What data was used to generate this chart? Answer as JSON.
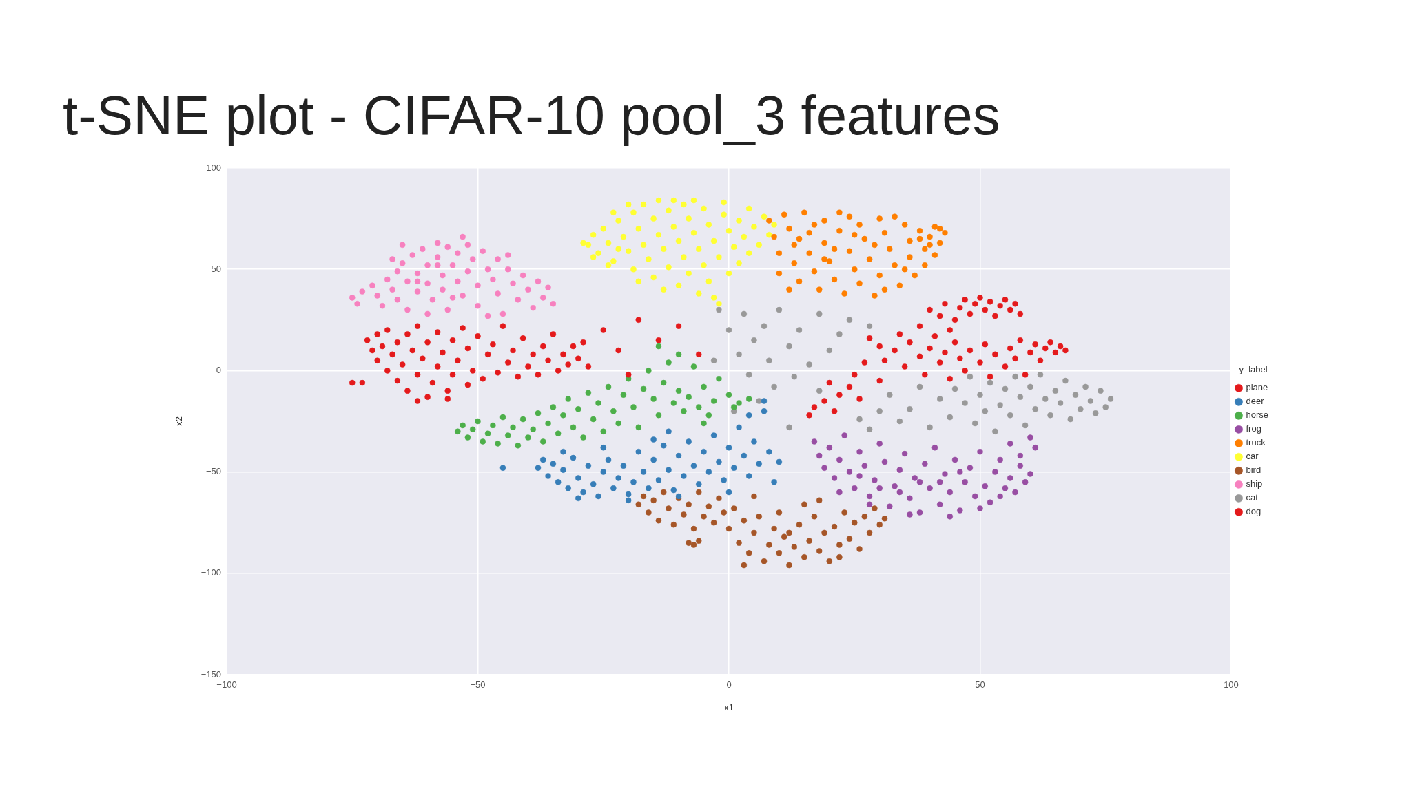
{
  "chart_data": {
    "type": "scatter",
    "title": "t-SNE plot - CIFAR-10 pool_3 features",
    "xlabel": "x1",
    "ylabel": "x2",
    "legend_title": "y_label",
    "xlim": [
      -100,
      100
    ],
    "xticks": [
      {
        "value": -100,
        "label": "−100"
      },
      {
        "value": -50,
        "label": "−50"
      },
      0,
      50,
      100
    ],
    "ylim": [
      -150,
      100
    ],
    "yticks": [
      {
        "value": -150,
        "label": "−150"
      },
      {
        "value": -100,
        "label": "−100"
      },
      {
        "value": -50,
        "label": "−50"
      },
      0,
      50,
      100
    ],
    "grid": true,
    "legend": "right",
    "marker": "circle",
    "series": [
      {
        "name": "plane",
        "color": "#e41a1c",
        "x": [
          -72,
          -71,
          -70,
          -70,
          -69,
          -68,
          -68,
          -67,
          -66,
          -66,
          -65,
          -64,
          -64,
          -63,
          -62,
          -62,
          -61,
          -60,
          -60,
          -59,
          -58,
          -58,
          -57,
          -56,
          -55,
          -55,
          -54,
          -53,
          -52,
          -52,
          -51,
          -50,
          -49,
          -48,
          -47,
          -46,
          -45,
          -44,
          -43,
          -42,
          -41,
          -40,
          -39,
          -38,
          -37,
          -36,
          -35,
          -34,
          -33,
          -32,
          -31,
          -30,
          -29,
          -28,
          -62,
          -56,
          -75,
          -73,
          -25,
          -22,
          -18,
          -14,
          -10,
          -6,
          -20
        ],
        "values": [
          15,
          10,
          18,
          5,
          12,
          0,
          20,
          8,
          14,
          -5,
          3,
          18,
          -10,
          10,
          -2,
          22,
          6,
          -13,
          14,
          -6,
          2,
          19,
          9,
          -10,
          15,
          -2,
          5,
          21,
          -7,
          11,
          0,
          17,
          -4,
          8,
          13,
          -1,
          22,
          4,
          10,
          -3,
          16,
          2,
          8,
          -2,
          12,
          5,
          18,
          0,
          8,
          3,
          12,
          6,
          14,
          2,
          -15,
          -14,
          -6,
          -6,
          20,
          10,
          25,
          15,
          22,
          8,
          -2
        ]
      },
      {
        "name": "deer",
        "color": "#377eb8",
        "x": [
          -45,
          -38,
          -37,
          -36,
          -35,
          -34,
          -33,
          -32,
          -31,
          -30,
          -29,
          -28,
          -27,
          -26,
          -25,
          -24,
          -23,
          -22,
          -21,
          -20,
          -19,
          -18,
          -17,
          -16,
          -15,
          -14,
          -13,
          -12,
          -11,
          -10,
          -9,
          -8,
          -7,
          -6,
          -5,
          -4,
          -3,
          -2,
          -1,
          0,
          1,
          2,
          3,
          4,
          5,
          6,
          7,
          8,
          9,
          10,
          7,
          -30,
          -20,
          -10,
          -25,
          -15,
          -33,
          -12,
          0,
          4
        ],
        "values": [
          -48,
          -48,
          -44,
          -52,
          -46,
          -55,
          -49,
          -58,
          -43,
          -53,
          -60,
          -47,
          -56,
          -62,
          -50,
          -44,
          -58,
          -53,
          -47,
          -61,
          -55,
          -40,
          -50,
          -58,
          -44,
          -54,
          -37,
          -49,
          -59,
          -42,
          -52,
          -35,
          -47,
          -56,
          -40,
          -50,
          -32,
          -45,
          -54,
          -38,
          -48,
          -28,
          -42,
          -52,
          -35,
          -46,
          -20,
          -40,
          -55,
          -45,
          -15,
          -63,
          -64,
          -62,
          -38,
          -34,
          -40,
          -30,
          -60,
          -22
        ]
      },
      {
        "name": "horse",
        "color": "#4daf4a",
        "x": [
          -54,
          -53,
          -52,
          -51,
          -50,
          -49,
          -48,
          -47,
          -46,
          -45,
          -44,
          -43,
          -42,
          -41,
          -40,
          -39,
          -38,
          -37,
          -36,
          -35,
          -34,
          -33,
          -32,
          -31,
          -30,
          -29,
          -28,
          -27,
          -26,
          -25,
          -24,
          -23,
          -22,
          -21,
          -20,
          -19,
          -18,
          -17,
          -16,
          -15,
          -14,
          -13,
          -12,
          -11,
          -10,
          -9,
          -8,
          -7,
          -6,
          -5,
          -4,
          -3,
          -2,
          0,
          1,
          2,
          4,
          -10,
          -14,
          -5
        ],
        "values": [
          -30,
          -27,
          -33,
          -29,
          -25,
          -35,
          -31,
          -27,
          -36,
          -23,
          -32,
          -28,
          -37,
          -24,
          -33,
          -29,
          -21,
          -35,
          -26,
          -18,
          -31,
          -22,
          -14,
          -28,
          -19,
          -33,
          -11,
          -24,
          -16,
          -30,
          -8,
          -20,
          -26,
          -12,
          -4,
          -18,
          -28,
          -9,
          0,
          -14,
          -22,
          -6,
          4,
          -16,
          -10,
          -20,
          -13,
          2,
          -18,
          -8,
          -22,
          -15,
          -4,
          -12,
          -18,
          -16,
          -14,
          8,
          12,
          -26
        ]
      },
      {
        "name": "frog",
        "color": "#984ea3",
        "x": [
          17,
          18,
          19,
          20,
          21,
          22,
          23,
          24,
          25,
          26,
          27,
          28,
          29,
          30,
          31,
          32,
          33,
          34,
          35,
          36,
          37,
          38,
          39,
          40,
          41,
          42,
          43,
          44,
          45,
          46,
          47,
          48,
          49,
          50,
          51,
          52,
          53,
          54,
          55,
          56,
          57,
          58,
          59,
          60,
          61,
          60,
          58,
          56,
          54,
          50,
          44,
          36,
          28,
          22,
          30,
          38,
          46,
          42,
          34,
          26
        ],
        "values": [
          -35,
          -42,
          -48,
          -38,
          -53,
          -44,
          -32,
          -50,
          -58,
          -40,
          -47,
          -62,
          -54,
          -36,
          -45,
          -67,
          -57,
          -49,
          -41,
          -63,
          -53,
          -70,
          -46,
          -58,
          -38,
          -66,
          -51,
          -60,
          -44,
          -69,
          -55,
          -48,
          -62,
          -40,
          -57,
          -65,
          -50,
          -44,
          -58,
          -53,
          -60,
          -47,
          -55,
          -51,
          -38,
          -33,
          -42,
          -36,
          -62,
          -68,
          -72,
          -71,
          -66,
          -60,
          -58,
          -55,
          -50,
          -55,
          -60,
          -52
        ]
      },
      {
        "name": "truck",
        "color": "#ff7f00",
        "x": [
          8,
          9,
          10,
          10,
          11,
          12,
          13,
          13,
          14,
          15,
          16,
          16,
          17,
          18,
          19,
          19,
          20,
          21,
          22,
          22,
          23,
          24,
          25,
          26,
          26,
          27,
          28,
          29,
          30,
          30,
          31,
          32,
          33,
          34,
          35,
          36,
          36,
          37,
          38,
          39,
          39,
          40,
          41,
          41,
          42,
          43,
          42,
          40,
          38,
          35,
          31,
          25,
          21,
          17,
          14,
          29,
          33,
          24,
          19,
          12
        ],
        "values": [
          74,
          66,
          58,
          48,
          77,
          70,
          62,
          53,
          44,
          78,
          68,
          58,
          49,
          40,
          74,
          63,
          54,
          45,
          78,
          69,
          38,
          59,
          50,
          72,
          43,
          65,
          55,
          37,
          75,
          47,
          68,
          60,
          52,
          42,
          72,
          64,
          56,
          47,
          69,
          60,
          52,
          66,
          71,
          57,
          63,
          68,
          70,
          62,
          65,
          50,
          40,
          67,
          60,
          72,
          65,
          62,
          76,
          76,
          55,
          40
        ]
      },
      {
        "name": "car",
        "color": "#ffff33",
        "x": [
          -28,
          -27,
          -26,
          -25,
          -24,
          -23,
          -22,
          -21,
          -20,
          -19,
          -19,
          -18,
          -17,
          -17,
          -16,
          -15,
          -15,
          -14,
          -14,
          -13,
          -12,
          -12,
          -11,
          -10,
          -10,
          -9,
          -9,
          -8,
          -8,
          -7,
          -6,
          -6,
          -5,
          -5,
          -4,
          -4,
          -3,
          -2,
          -2,
          -1,
          0,
          0,
          1,
          2,
          2,
          3,
          4,
          4,
          5,
          6,
          7,
          8,
          -20,
          -23,
          -11,
          -7,
          -1,
          -13,
          -18,
          -24,
          -27,
          -3,
          9,
          -29,
          -22
        ],
        "values": [
          62,
          67,
          58,
          70,
          63,
          54,
          74,
          66,
          59,
          78,
          50,
          70,
          82,
          62,
          55,
          75,
          46,
          84,
          67,
          60,
          79,
          51,
          71,
          64,
          42,
          82,
          56,
          75,
          48,
          68,
          60,
          38,
          80,
          52,
          72,
          44,
          64,
          56,
          33,
          77,
          69,
          48,
          61,
          74,
          53,
          66,
          80,
          58,
          71,
          62,
          76,
          67,
          82,
          78,
          84,
          84,
          83,
          40,
          44,
          52,
          56,
          36,
          72,
          63,
          60
        ]
      },
      {
        "name": "bird",
        "color": "#a65628",
        "x": [
          -18,
          -17,
          -16,
          -15,
          -14,
          -13,
          -12,
          -11,
          -10,
          -9,
          -8,
          -7,
          -6,
          -5,
          -4,
          -3,
          -2,
          -1,
          0,
          1,
          2,
          3,
          4,
          5,
          6,
          7,
          8,
          9,
          10,
          11,
          12,
          13,
          14,
          15,
          16,
          17,
          18,
          19,
          20,
          21,
          22,
          23,
          24,
          25,
          26,
          27,
          28,
          29,
          30,
          31,
          -8,
          -7,
          -6,
          10,
          15,
          5,
          18,
          12,
          3,
          22
        ],
        "values": [
          -66,
          -62,
          -70,
          -64,
          -74,
          -60,
          -68,
          -76,
          -63,
          -71,
          -66,
          -78,
          -60,
          -72,
          -67,
          -75,
          -63,
          -70,
          -78,
          -68,
          -85,
          -74,
          -90,
          -80,
          -72,
          -94,
          -86,
          -78,
          -90,
          -82,
          -96,
          -87,
          -76,
          -92,
          -84,
          -72,
          -89,
          -80,
          -94,
          -77,
          -86,
          -70,
          -83,
          -75,
          -88,
          -72,
          -80,
          -68,
          -76,
          -73,
          -85,
          -86,
          -84,
          -70,
          -66,
          -62,
          -64,
          -80,
          -96,
          -92
        ]
      },
      {
        "name": "ship",
        "color": "#f781bf",
        "x": [
          -75,
          -73,
          -74,
          -71,
          -70,
          -69,
          -68,
          -67,
          -66,
          -66,
          -65,
          -64,
          -64,
          -63,
          -62,
          -62,
          -61,
          -60,
          -60,
          -59,
          -58,
          -58,
          -57,
          -57,
          -56,
          -56,
          -55,
          -54,
          -54,
          -53,
          -52,
          -52,
          -51,
          -50,
          -50,
          -49,
          -48,
          -47,
          -46,
          -46,
          -45,
          -44,
          -43,
          -42,
          -41,
          -40,
          -39,
          -38,
          -37,
          -36,
          -35,
          -48,
          -60,
          -65,
          -53,
          -67,
          -58,
          -62,
          -55,
          -44
        ],
        "values": [
          36,
          39,
          33,
          42,
          37,
          32,
          45,
          40,
          49,
          35,
          53,
          44,
          30,
          57,
          48,
          39,
          60,
          52,
          43,
          35,
          63,
          56,
          47,
          40,
          61,
          30,
          52,
          44,
          58,
          37,
          62,
          49,
          55,
          42,
          32,
          59,
          50,
          45,
          55,
          38,
          28,
          50,
          43,
          35,
          47,
          40,
          31,
          44,
          36,
          41,
          33,
          27,
          28,
          62,
          66,
          55,
          52,
          44,
          36,
          57
        ]
      },
      {
        "name": "cat",
        "color": "#999999",
        "x": [
          76,
          75,
          74,
          73,
          72,
          71,
          70,
          69,
          68,
          67,
          66,
          65,
          64,
          63,
          62,
          61,
          60,
          59,
          58,
          57,
          56,
          55,
          54,
          53,
          52,
          51,
          50,
          49,
          48,
          47,
          45,
          44,
          42,
          40,
          38,
          36,
          34,
          32,
          30,
          28,
          26,
          24,
          22,
          20,
          18,
          16,
          14,
          13,
          12,
          10,
          9,
          8,
          7,
          6,
          5,
          4,
          3,
          2,
          1,
          0,
          -2,
          -3,
          12,
          18,
          28
        ],
        "values": [
          -14,
          -18,
          -10,
          -21,
          -15,
          -8,
          -19,
          -12,
          -24,
          -5,
          -16,
          -10,
          -22,
          -14,
          -2,
          -19,
          -8,
          -27,
          -13,
          -3,
          -22,
          -9,
          -17,
          -30,
          -6,
          -20,
          -12,
          -26,
          -3,
          -16,
          -9,
          -23,
          -14,
          -28,
          -8,
          -19,
          -25,
          -12,
          -20,
          -29,
          -24,
          25,
          18,
          10,
          28,
          3,
          20,
          -3,
          12,
          30,
          -8,
          5,
          22,
          -15,
          15,
          -2,
          28,
          8,
          -20,
          20,
          30,
          5,
          -28,
          -10,
          22
        ]
      },
      {
        "name": "dog",
        "color": "#e41a1c",
        "x": [
          40,
          42,
          43,
          45,
          46,
          47,
          48,
          49,
          50,
          51,
          52,
          53,
          54,
          55,
          56,
          57,
          58,
          44,
          38,
          34,
          30,
          28,
          31,
          33,
          35,
          36,
          38,
          39,
          40,
          41,
          42,
          43,
          44,
          45,
          46,
          47,
          48,
          50,
          51,
          52,
          53,
          55,
          56,
          57,
          58,
          59,
          60,
          61,
          62,
          63,
          64,
          65,
          66,
          67,
          27,
          25,
          24,
          22,
          20,
          19,
          17,
          16,
          21,
          26,
          30
        ],
        "values": [
          30,
          27,
          33,
          25,
          31,
          35,
          28,
          33,
          36,
          30,
          34,
          27,
          32,
          35,
          30,
          33,
          28,
          20,
          22,
          18,
          12,
          16,
          5,
          10,
          2,
          14,
          7,
          -2,
          11,
          17,
          4,
          9,
          -4,
          14,
          6,
          0,
          10,
          4,
          13,
          -3,
          8,
          2,
          11,
          6,
          15,
          -2,
          9,
          13,
          5,
          11,
          14,
          9,
          12,
          10,
          4,
          -2,
          -8,
          -12,
          -6,
          -15,
          -18,
          -22,
          -20,
          -14,
          -5
        ]
      }
    ]
  }
}
